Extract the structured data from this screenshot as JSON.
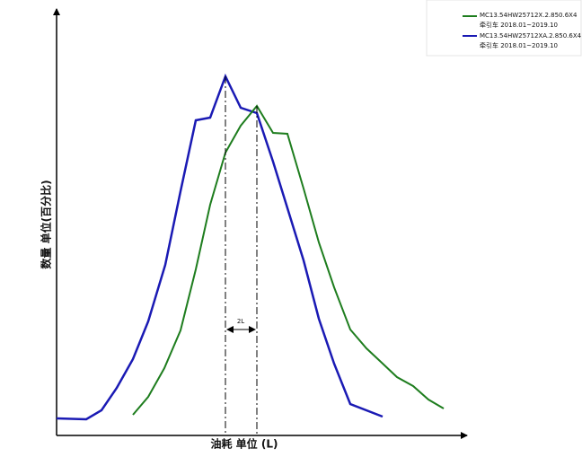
{
  "legend": {
    "entries": [
      {
        "name": "MC13.54HW25712X.2.850.6X4",
        "note": "牵引车 2018.01~2019.10"
      },
      {
        "name": "MC13.54HW25712XA.2.850.6X4",
        "note": "牵引车 2018.01~2019.10"
      }
    ]
  },
  "axes": {
    "y_label": "数量 单位(百分比)",
    "x_label": "油耗 单位 (L)"
  },
  "annotation": "2L"
}
